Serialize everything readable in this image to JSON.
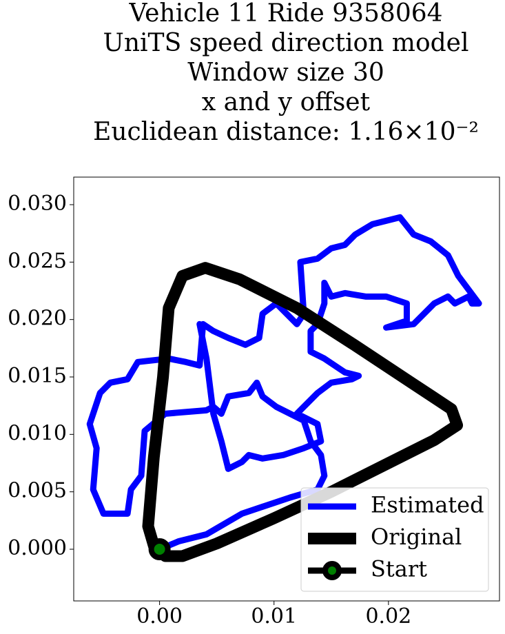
{
  "chart_data": {
    "type": "line",
    "title": [
      "Vehicle 11 Ride 9358064",
      "UniTS speed direction model",
      "Window size 30",
      "x and y offset",
      "Euclidean distance: 1.16×10⁻²"
    ],
    "xlim": [
      -0.0075,
      0.0297
    ],
    "ylim": [
      -0.0045,
      0.0324
    ],
    "xticks": [
      {
        "value": 0,
        "label": "0.00"
      },
      {
        "value": 0.01,
        "label": "0.01"
      },
      {
        "value": 0.02,
        "label": "0.02"
      }
    ],
    "yticks": [
      {
        "value": 0,
        "label": "0.000"
      },
      {
        "value": 0.005,
        "label": "0.005"
      },
      {
        "value": 0.01,
        "label": "0.010"
      },
      {
        "value": 0.015,
        "label": "0.015"
      },
      {
        "value": 0.02,
        "label": "0.020"
      },
      {
        "value": 0.025,
        "label": "0.025"
      },
      {
        "value": 0.03,
        "label": "0.030"
      }
    ],
    "legend": "lower right",
    "series": [
      {
        "name": "Estimated",
        "color": "#0000ff",
        "x": [
          0,
          0.0017,
          0.0041,
          0.0072,
          0.0114,
          0.0138,
          0.0144,
          0.0141,
          0.0132,
          0.0126,
          0.0114,
          0.0102,
          0.009,
          0.0085,
          0.0078,
          0.006,
          0.0054,
          0.0047,
          0.0041,
          0.0005,
          -0.0013,
          -0.0016,
          -0.0025,
          -0.0028,
          -0.0049,
          -0.0058,
          -0.0055,
          -0.0061,
          -0.0052,
          -0.0043,
          -0.0028,
          -0.0019,
          0.0008,
          0.0023,
          0.0035,
          0.0038,
          0.0047,
          0.006,
          0.0075,
          0.0087,
          0.009,
          0.0102,
          0.012,
          0.0126,
          0.0123,
          0.0138,
          0.015,
          0.0162,
          0.0171,
          0.0186,
          0.021,
          0.0222,
          0.0237,
          0.0252,
          0.0261,
          0.027,
          0.0279,
          0.0273,
          0.027,
          0.0258,
          0.0252,
          0.024,
          0.0222,
          0.0198,
          0.0216,
          0.0216,
          0.0198,
          0.018,
          0.0162,
          0.015,
          0.0144,
          0.0144,
          0.0138,
          0.0132,
          0.0132,
          0.0144,
          0.0162,
          0.0174,
          0.0168,
          0.015,
          0.0138,
          0.0132,
          0.012,
          0.0138,
          0.0141,
          0.0126,
          0.0108,
          0.009,
          0.0078,
          0.0072,
          0.006,
          0.0054,
          0.0047,
          0.0041,
          0.0035
        ],
        "values": [
          0,
          0.0007,
          0.0013,
          0.0031,
          0.0045,
          0.0052,
          0.0064,
          0.0082,
          0.0094,
          0.0112,
          0.0118,
          0.0124,
          0.0133,
          0.0145,
          0.0136,
          0.0133,
          0.0118,
          0.0124,
          0.0121,
          0.0118,
          0.0103,
          0.0064,
          0.0052,
          0.0031,
          0.0031,
          0.0052,
          0.0088,
          0.0109,
          0.0136,
          0.0145,
          0.0148,
          0.0163,
          0.0166,
          0.0163,
          0.016,
          0.0196,
          0.019,
          0.0184,
          0.0178,
          0.0184,
          0.0205,
          0.0214,
          0.0196,
          0.0205,
          0.025,
          0.0253,
          0.0262,
          0.0265,
          0.0274,
          0.0283,
          0.0289,
          0.0274,
          0.0268,
          0.0256,
          0.0238,
          0.0226,
          0.0214,
          0.0214,
          0.022,
          0.0214,
          0.022,
          0.0214,
          0.0196,
          0.0193,
          0.0199,
          0.0214,
          0.022,
          0.022,
          0.0223,
          0.022,
          0.0232,
          0.0214,
          0.0196,
          0.019,
          0.0172,
          0.0166,
          0.0154,
          0.0151,
          0.0148,
          0.0145,
          0.0136,
          0.013,
          0.0118,
          0.0109,
          0.0094,
          0.0088,
          0.0082,
          0.0079,
          0.0082,
          0.0076,
          0.007,
          0.0094,
          0.0118,
          0.0166,
          0.0196
        ]
      },
      {
        "name": "Original",
        "color": "#000000",
        "x": [
          0,
          0.0005,
          0.002,
          0.005,
          0.01,
          0.015,
          0.02,
          0.024,
          0.026,
          0.0255,
          0.022,
          0.017,
          0.012,
          0.007,
          0.004,
          0.002,
          0.0008,
          0.0003,
          -0.0005,
          -0.001,
          -0.0005,
          0
        ],
        "values": [
          0,
          -0.0006,
          -0.0006,
          0.0005,
          0.0027,
          0.005,
          0.0075,
          0.0095,
          0.0108,
          0.0122,
          0.0145,
          0.0178,
          0.021,
          0.0235,
          0.0245,
          0.0238,
          0.021,
          0.015,
          0.008,
          0.002,
          0.0003,
          0
        ]
      },
      {
        "name": "Start",
        "color": "#000000",
        "marker_color": "#008000",
        "x": [
          0
        ],
        "values": [
          0
        ]
      }
    ]
  }
}
